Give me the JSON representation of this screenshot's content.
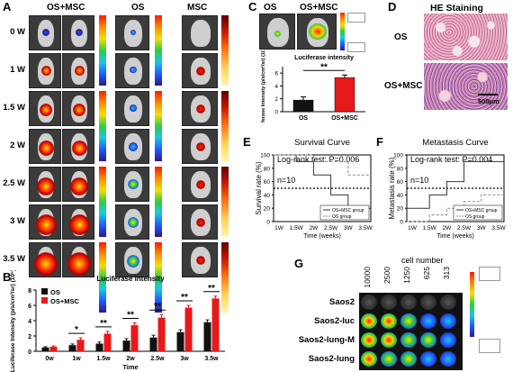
{
  "panels": {
    "a": "A",
    "b": "B",
    "c": "C",
    "d": "D",
    "e": "E",
    "f": "F",
    "g": "G"
  },
  "panel_a": {
    "headers": [
      "OS+MSC",
      "OS",
      "MSC"
    ],
    "rows": [
      "0 W",
      "1 W",
      "1.5 W",
      "2 W",
      "2.5 W",
      "3 W",
      "3.5 W"
    ]
  },
  "panel_b": {
    "chart_data": {
      "type": "bar",
      "title": "Luciferase intensity",
      "ylabel": "Luciferase Intensity (p/s/cm²/sr) (10⁶)",
      "xlabel": "Time",
      "categories": [
        "0w",
        "1w",
        "1.5w",
        "2w",
        "2.5w",
        "3w",
        "3.5w"
      ],
      "ylim": [
        0,
        8
      ],
      "yticks": [
        0,
        2,
        4,
        6,
        8
      ],
      "series": [
        {
          "name": "OS",
          "color": "#111111",
          "values": [
            0.5,
            0.8,
            1.0,
            1.4,
            1.8,
            2.5,
            3.8
          ],
          "errors": [
            0.1,
            0.15,
            0.2,
            0.25,
            0.3,
            0.3,
            0.3
          ]
        },
        {
          "name": "OS+MSC",
          "color": "#e8191a",
          "values": [
            0.6,
            1.5,
            2.3,
            3.4,
            4.4,
            5.7,
            6.9
          ],
          "errors": [
            0.1,
            0.25,
            0.3,
            0.3,
            0.4,
            0.3,
            0.3
          ]
        }
      ],
      "significance": [
        "",
        "*",
        "**",
        "**",
        "**",
        "**",
        "**"
      ]
    }
  },
  "panel_c": {
    "images": [
      "OS",
      "OS+MSC"
    ],
    "chart_data": {
      "type": "bar",
      "title": "Luciferase intensity",
      "ylabel": "Luciferase Intensity (p/s/cm²/sr) (10⁶)",
      "categories": [
        "OS",
        "OS+MSC"
      ],
      "values": [
        1.8,
        5.3
      ],
      "errors": [
        0.5,
        0.4
      ],
      "colors": [
        "#111111",
        "#e8191a"
      ],
      "ylim": [
        0,
        7
      ],
      "yticks": [
        0,
        2,
        4,
        6
      ],
      "significance": "**"
    }
  },
  "panel_d": {
    "title": "HE Staining",
    "rows": [
      "OS",
      "OS+MSC"
    ],
    "scalebar": "500μm"
  },
  "panel_e": {
    "chart_data": {
      "type": "line",
      "title": "Survival Curve",
      "annotation": "Log-rank test: P=0.006",
      "n": "n=10",
      "ylabel": "Survival rate (%)",
      "xlabel": "Time (weeks)",
      "categories": [
        "1W",
        "1.5W",
        "2W",
        "2.5W",
        "3W",
        "3.5W"
      ],
      "ylim": [
        0,
        100
      ],
      "yticks": [
        0,
        20,
        40,
        60,
        80,
        100
      ],
      "series": [
        {
          "name": "OS+MSC group",
          "style": "solid",
          "values": [
            100,
            90,
            70,
            40,
            20,
            20
          ]
        },
        {
          "name": "OS group",
          "style": "dashed",
          "values": [
            100,
            100,
            90,
            90,
            70,
            70
          ]
        }
      ],
      "hline": 50
    }
  },
  "panel_f": {
    "chart_data": {
      "type": "line",
      "title": "Metastasis Curve",
      "annotation": "Log-rank test: P=0.004",
      "n": "n=10",
      "ylabel": "Metastasis rate (%)",
      "xlabel": "Time (weeks)",
      "categories": [
        "1W",
        "1.5W",
        "2W",
        "2.5W",
        "3W",
        "3.5W"
      ],
      "ylim": [
        0,
        100
      ],
      "yticks": [
        0,
        20,
        40,
        60,
        80,
        100
      ],
      "series": [
        {
          "name": "OS+MSC group",
          "style": "solid",
          "values": [
            20,
            40,
            60,
            90,
            90,
            90
          ]
        },
        {
          "name": "OS group",
          "style": "dashed",
          "values": [
            0,
            10,
            20,
            30,
            40,
            40
          ]
        }
      ],
      "hline": 50
    }
  },
  "panel_g": {
    "title": "cell number",
    "columns": [
      "10000",
      "2500",
      "1250",
      "625",
      "313"
    ],
    "rows": [
      "Saos2",
      "Saos2-luc",
      "Saos2-lung-M",
      "Saos2-lung"
    ]
  }
}
